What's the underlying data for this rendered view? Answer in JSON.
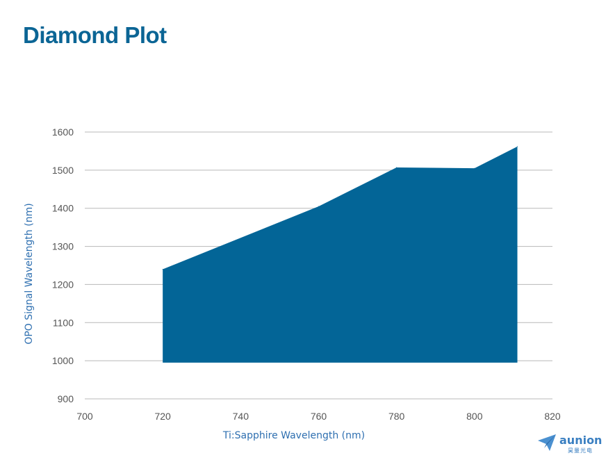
{
  "page": {
    "title": "Diamond Plot"
  },
  "logo": {
    "name": "aunion",
    "subtitle": "昊量光电"
  },
  "colors": {
    "title": "#0b6595",
    "fill": "#036597",
    "axis_label": "#2e6fb0",
    "grid": "#b8b8b8"
  },
  "chart_data": {
    "type": "area",
    "title": "",
    "xlabel": "Ti:Sapphire Wavelength (nm)",
    "ylabel": "OPO Signal Wavelength (nm)",
    "xlim": [
      700,
      820
    ],
    "ylim": [
      900,
      1600
    ],
    "x_ticks": [
      700,
      720,
      740,
      760,
      780,
      800,
      820
    ],
    "y_ticks": [
      900,
      1000,
      1100,
      1200,
      1300,
      1400,
      1500,
      1600
    ],
    "grid": "horizontal",
    "legend": "none",
    "baseline": 995,
    "series": [
      {
        "x": [
          720,
          760,
          780,
          800,
          811
        ],
        "y": [
          1240,
          1405,
          1507,
          1505,
          1562
        ]
      }
    ]
  }
}
